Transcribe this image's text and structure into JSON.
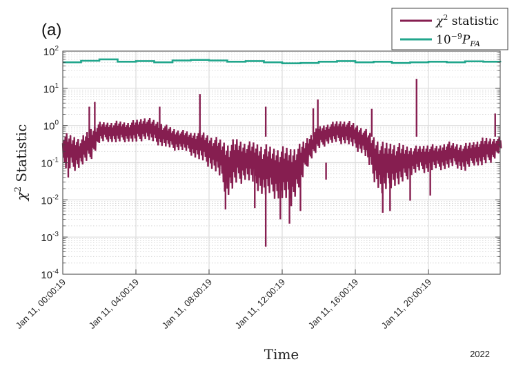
{
  "panel_label": "(a)",
  "year_label": "2022",
  "chart_data": {
    "type": "line",
    "xlabel": "Time",
    "ylabel_base": "χ",
    "ylabel_sup": "2",
    "ylabel_rest": " Statistic",
    "yscale": "log",
    "ylim": [
      0.0001,
      100
    ],
    "xlim_hours": [
      0,
      24
    ],
    "grid": true,
    "legend_placement": "top-right",
    "legend": [
      {
        "name": "χ² statistic",
        "label_main": "χ",
        "label_sup": "2",
        "label_rest": " statistic",
        "color": "#861E50"
      },
      {
        "name": "1e-9 PFA",
        "label_main": "10",
        "label_sup": "−9",
        "label_rest": "P",
        "label_sub": "FA",
        "color": "#21A68C"
      }
    ],
    "yticks": [
      {
        "value": 100,
        "base": "10",
        "exp": "2"
      },
      {
        "value": 10,
        "base": "10",
        "exp": "1"
      },
      {
        "value": 1,
        "base": "10",
        "exp": "0"
      },
      {
        "value": 0.1,
        "base": "10",
        "exp": "-1"
      },
      {
        "value": 0.01,
        "base": "10",
        "exp": "-2"
      },
      {
        "value": 0.001,
        "base": "10",
        "exp": "-3"
      },
      {
        "value": 0.0001,
        "base": "10",
        "exp": "-4"
      }
    ],
    "xticks": [
      {
        "hour": 0,
        "label": "Jan 11, 00:00:19"
      },
      {
        "hour": 4,
        "label": "Jan 11, 04:00:19"
      },
      {
        "hour": 8,
        "label": "Jan 11, 08:00:19"
      },
      {
        "hour": 12,
        "label": "Jan 11, 12:00:19"
      },
      {
        "hour": 16,
        "label": "Jan 11, 16:00:19"
      },
      {
        "hour": 20,
        "label": "Jan 11, 20:00:19"
      }
    ],
    "chi2_series": {
      "name": "χ² statistic",
      "t_step_hours": 0.5,
      "upper": [
        0.7,
        0.6,
        0.5,
        0.9,
        1.3,
        1.3,
        1.4,
        1.3,
        1.5,
        1.8,
        1.5,
        1.2,
        0.9,
        0.8,
        0.7,
        0.8,
        0.6,
        0.5,
        0.4,
        0.5,
        0.4,
        0.4,
        0.35,
        0.3,
        0.3,
        0.3,
        0.35,
        0.6,
        1.0,
        1.2,
        1.4,
        1.5,
        1.2,
        0.9,
        0.6,
        0.4,
        0.4,
        0.35,
        0.3,
        0.3,
        0.35,
        0.3,
        0.4,
        0.35,
        0.35,
        0.4,
        0.5,
        0.5,
        0.5
      ],
      "lower": [
        0.06,
        0.05,
        0.07,
        0.1,
        0.3,
        0.35,
        0.3,
        0.35,
        0.3,
        0.4,
        0.3,
        0.25,
        0.2,
        0.2,
        0.15,
        0.1,
        0.07,
        0.04,
        0.01,
        0.02,
        0.03,
        0.02,
        0.01,
        0.01,
        0.008,
        0.006,
        0.02,
        0.1,
        0.2,
        0.3,
        0.3,
        0.3,
        0.2,
        0.15,
        0.03,
        0.01,
        0.02,
        0.02,
        0.04,
        0.05,
        0.05,
        0.06,
        0.06,
        0.07,
        0.05,
        0.08,
        0.07,
        0.1,
        0.2
      ],
      "spikes": [
        {
          "hour": 1.45,
          "value": 3.2
        },
        {
          "hour": 1.75,
          "value": 4.3
        },
        {
          "hour": 5.3,
          "value": 3.2
        },
        {
          "hour": 7.5,
          "value": 7.0
        },
        {
          "hour": 11.1,
          "value": 3.2
        },
        {
          "hour": 13.7,
          "value": 2.9
        },
        {
          "hour": 13.95,
          "value": 5.0
        },
        {
          "hour": 16.9,
          "value": 2.8
        },
        {
          "hour": 19.35,
          "value": 18.0
        },
        {
          "hour": 23.65,
          "value": 2.1
        }
      ],
      "dips": [
        {
          "hour": 0.3,
          "value": 0.04
        },
        {
          "hour": 8.9,
          "value": 0.0055
        },
        {
          "hour": 10.5,
          "value": 0.006
        },
        {
          "hour": 11.1,
          "value": 0.00055
        },
        {
          "hour": 11.9,
          "value": 0.003
        },
        {
          "hour": 12.4,
          "value": 0.0023
        },
        {
          "hour": 13.0,
          "value": 0.005
        },
        {
          "hour": 14.4,
          "value": 0.035
        },
        {
          "hour": 17.5,
          "value": 0.0045
        },
        {
          "hour": 17.9,
          "value": 0.005
        },
        {
          "hour": 19.0,
          "value": 0.0095
        },
        {
          "hour": 20.1,
          "value": 0.013
        }
      ]
    },
    "pfa_series": {
      "name": "10^-9 PFA",
      "hours": [
        0,
        1,
        2,
        3,
        4,
        5,
        6,
        7,
        8,
        9,
        10,
        11,
        12,
        13,
        14,
        15,
        16,
        17,
        18,
        19,
        20,
        21,
        22,
        23,
        24
      ],
      "values": [
        50,
        55,
        60,
        52,
        54,
        50,
        56,
        58,
        56,
        52,
        54,
        50,
        47,
        48,
        52,
        54,
        50,
        52,
        48,
        50,
        52,
        50,
        53,
        52,
        50
      ]
    }
  }
}
